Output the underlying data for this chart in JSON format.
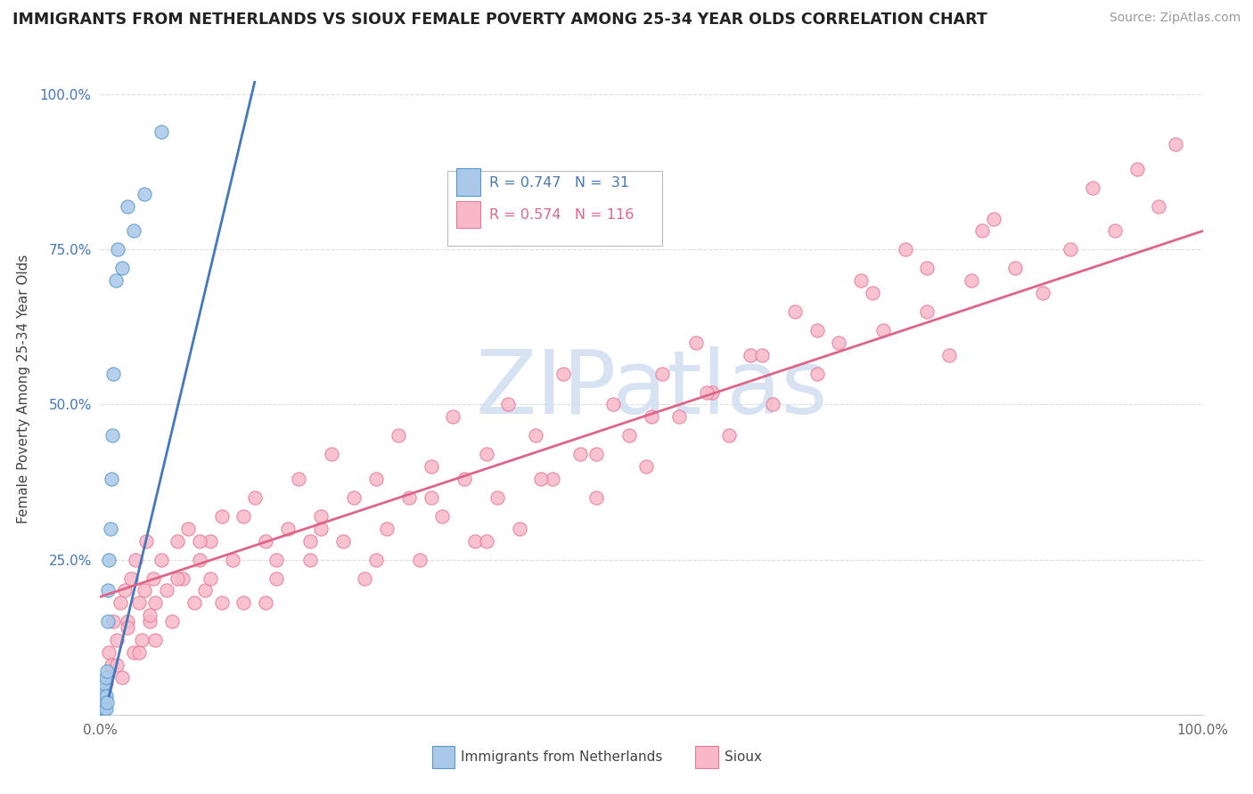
{
  "title": "IMMIGRANTS FROM NETHERLANDS VS SIOUX FEMALE POVERTY AMONG 25-34 YEAR OLDS CORRELATION CHART",
  "source": "Source: ZipAtlas.com",
  "ylabel": "Female Poverty Among 25-34 Year Olds",
  "xlim": [
    0.0,
    1.0
  ],
  "ylim": [
    0.0,
    1.05
  ],
  "background_color": "#ffffff",
  "grid_color": "#dddddd",
  "netherlands_color": "#aac8e8",
  "netherlands_edge_color": "#5599cc",
  "netherlands_line_color": "#4477bb",
  "sioux_color": "#f8b8c8",
  "sioux_edge_color": "#e87898",
  "sioux_line_color": "#dd6688",
  "watermark_color": "#d0dff0",
  "watermark_text": "ZIPatlas",
  "legend_R1": "R = 0.747",
  "legend_N1": "N =  31",
  "legend_R2": "R = 0.574",
  "legend_N2": "N = 116",
  "legend_label1": "Immigrants from Netherlands",
  "legend_label2": "Sioux",
  "nl_line_x": [
    0.008,
    0.14
  ],
  "nl_line_y": [
    0.03,
    1.02
  ],
  "sioux_line_x": [
    0.0,
    1.0
  ],
  "sioux_line_y": [
    0.19,
    0.78
  ],
  "nl_x": [
    0.001,
    0.002,
    0.002,
    0.003,
    0.003,
    0.003,
    0.003,
    0.003,
    0.004,
    0.004,
    0.004,
    0.004,
    0.005,
    0.005,
    0.005,
    0.006,
    0.006,
    0.007,
    0.007,
    0.008,
    0.009,
    0.01,
    0.011,
    0.012,
    0.014,
    0.016,
    0.02,
    0.025,
    0.03,
    0.04,
    0.055
  ],
  "nl_y": [
    0.01,
    0.02,
    0.03,
    0.01,
    0.02,
    0.03,
    0.04,
    0.05,
    0.01,
    0.02,
    0.04,
    0.05,
    0.01,
    0.03,
    0.06,
    0.02,
    0.07,
    0.15,
    0.2,
    0.25,
    0.3,
    0.38,
    0.45,
    0.55,
    0.7,
    0.75,
    0.72,
    0.82,
    0.78,
    0.84,
    0.94
  ],
  "sioux_x": [
    0.005,
    0.008,
    0.01,
    0.012,
    0.015,
    0.018,
    0.02,
    0.022,
    0.025,
    0.028,
    0.03,
    0.032,
    0.035,
    0.038,
    0.04,
    0.042,
    0.045,
    0.048,
    0.05,
    0.055,
    0.06,
    0.065,
    0.07,
    0.075,
    0.08,
    0.085,
    0.09,
    0.095,
    0.1,
    0.11,
    0.12,
    0.13,
    0.14,
    0.15,
    0.16,
    0.17,
    0.18,
    0.19,
    0.2,
    0.21,
    0.22,
    0.23,
    0.24,
    0.25,
    0.26,
    0.27,
    0.28,
    0.29,
    0.3,
    0.31,
    0.32,
    0.33,
    0.34,
    0.35,
    0.36,
    0.37,
    0.38,
    0.395,
    0.41,
    0.42,
    0.435,
    0.45,
    0.465,
    0.48,
    0.495,
    0.51,
    0.525,
    0.54,
    0.555,
    0.57,
    0.59,
    0.61,
    0.63,
    0.65,
    0.67,
    0.69,
    0.71,
    0.73,
    0.75,
    0.77,
    0.79,
    0.81,
    0.83,
    0.855,
    0.88,
    0.9,
    0.92,
    0.94,
    0.96,
    0.975,
    0.05,
    0.1,
    0.15,
    0.2,
    0.25,
    0.3,
    0.35,
    0.4,
    0.45,
    0.5,
    0.55,
    0.6,
    0.65,
    0.7,
    0.75,
    0.8,
    0.015,
    0.025,
    0.035,
    0.045,
    0.07,
    0.09,
    0.11,
    0.13,
    0.16,
    0.19
  ],
  "sioux_y": [
    0.05,
    0.1,
    0.08,
    0.15,
    0.12,
    0.18,
    0.06,
    0.2,
    0.15,
    0.22,
    0.1,
    0.25,
    0.18,
    0.12,
    0.2,
    0.28,
    0.15,
    0.22,
    0.18,
    0.25,
    0.2,
    0.15,
    0.28,
    0.22,
    0.3,
    0.18,
    0.25,
    0.2,
    0.28,
    0.32,
    0.25,
    0.18,
    0.35,
    0.28,
    0.22,
    0.3,
    0.38,
    0.25,
    0.32,
    0.42,
    0.28,
    0.35,
    0.22,
    0.38,
    0.3,
    0.45,
    0.35,
    0.25,
    0.4,
    0.32,
    0.48,
    0.38,
    0.28,
    0.42,
    0.35,
    0.5,
    0.3,
    0.45,
    0.38,
    0.55,
    0.42,
    0.35,
    0.5,
    0.45,
    0.4,
    0.55,
    0.48,
    0.6,
    0.52,
    0.45,
    0.58,
    0.5,
    0.65,
    0.55,
    0.6,
    0.7,
    0.62,
    0.75,
    0.65,
    0.58,
    0.7,
    0.8,
    0.72,
    0.68,
    0.75,
    0.85,
    0.78,
    0.88,
    0.82,
    0.92,
    0.12,
    0.22,
    0.18,
    0.3,
    0.25,
    0.35,
    0.28,
    0.38,
    0.42,
    0.48,
    0.52,
    0.58,
    0.62,
    0.68,
    0.72,
    0.78,
    0.08,
    0.14,
    0.1,
    0.16,
    0.22,
    0.28,
    0.18,
    0.32,
    0.25,
    0.28
  ]
}
